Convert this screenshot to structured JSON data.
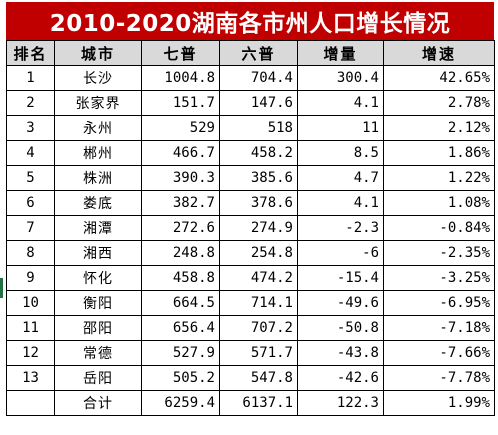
{
  "title": "2010-2020湖南各市州人口增长情况",
  "headers": [
    "排名",
    "城市",
    "七普",
    "六普",
    "增量",
    "增速"
  ],
  "rows": [
    {
      "rank": "1",
      "city": "长沙",
      "seventh": "1004.8",
      "sixth": "704.4",
      "increase": "300.4",
      "rate": "42.65%"
    },
    {
      "rank": "2",
      "city": "张家界",
      "seventh": "151.7",
      "sixth": "147.6",
      "increase": "4.1",
      "rate": "2.78%"
    },
    {
      "rank": "3",
      "city": "永州",
      "seventh": "529",
      "sixth": "518",
      "increase": "11",
      "rate": "2.12%"
    },
    {
      "rank": "4",
      "city": "郴州",
      "seventh": "466.7",
      "sixth": "458.2",
      "increase": "8.5",
      "rate": "1.86%"
    },
    {
      "rank": "5",
      "city": "株洲",
      "seventh": "390.3",
      "sixth": "385.6",
      "increase": "4.7",
      "rate": "1.22%"
    },
    {
      "rank": "6",
      "city": "娄底",
      "seventh": "382.7",
      "sixth": "378.6",
      "increase": "4.1",
      "rate": "1.08%"
    },
    {
      "rank": "7",
      "city": "湘潭",
      "seventh": "272.6",
      "sixth": "274.9",
      "increase": "-2.3",
      "rate": "-0.84%"
    },
    {
      "rank": "8",
      "city": "湘西",
      "seventh": "248.8",
      "sixth": "254.8",
      "increase": "-6",
      "rate": "-2.35%"
    },
    {
      "rank": "9",
      "city": "怀化",
      "seventh": "458.8",
      "sixth": "474.2",
      "increase": "-15.4",
      "rate": "-3.25%"
    },
    {
      "rank": "10",
      "city": "衡阳",
      "seventh": "664.5",
      "sixth": "714.1",
      "increase": "-49.6",
      "rate": "-6.95%"
    },
    {
      "rank": "11",
      "city": "邵阳",
      "seventh": "656.4",
      "sixth": "707.2",
      "increase": "-50.8",
      "rate": "-7.18%"
    },
    {
      "rank": "12",
      "city": "常德",
      "seventh": "527.9",
      "sixth": "571.7",
      "increase": "-43.8",
      "rate": "-7.66%"
    },
    {
      "rank": "13",
      "city": "岳阳",
      "seventh": "505.2",
      "sixth": "547.8",
      "increase": "-42.6",
      "rate": "-7.78%"
    }
  ],
  "total": {
    "rank": "",
    "city": "合计",
    "seventh": "6259.4",
    "sixth": "6137.1",
    "increase": "122.3",
    "rate": "1.99%"
  },
  "colors": {
    "title_bg": "#c00000",
    "title_text": "#ffffff",
    "header_bg": "#d9d9d9",
    "border": "#000000",
    "row_marker": "#217346"
  }
}
